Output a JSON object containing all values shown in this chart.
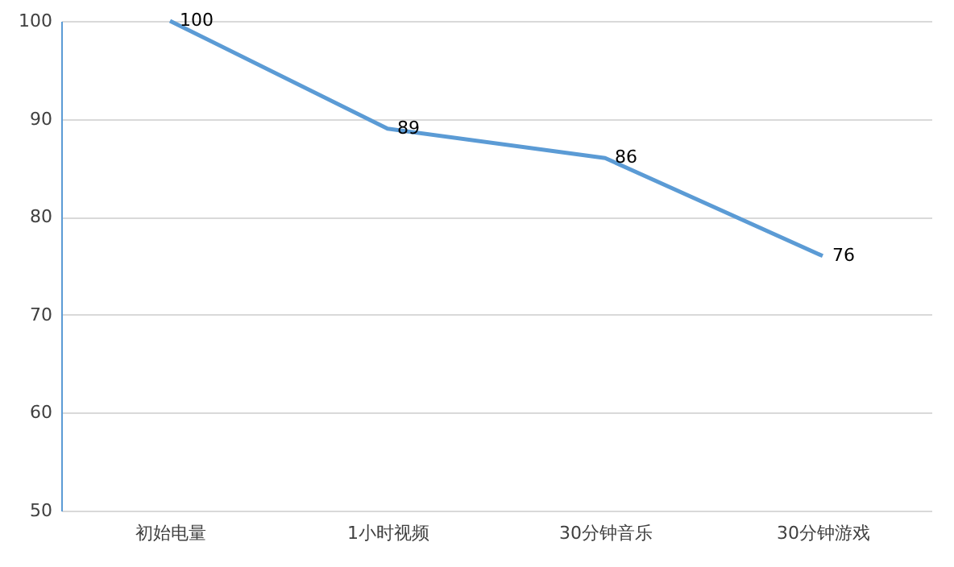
{
  "chart_data": {
    "type": "line",
    "categories": [
      "初始电量",
      "1小时视频",
      "30分钟音乐",
      "30分钟游戏"
    ],
    "values": [
      100,
      89,
      86,
      76
    ],
    "color": "#5b9bd5",
    "ylim": [
      50,
      100
    ],
    "yticks": [
      50,
      60,
      70,
      80,
      90,
      100
    ],
    "grid": "y",
    "data_labels": true
  }
}
